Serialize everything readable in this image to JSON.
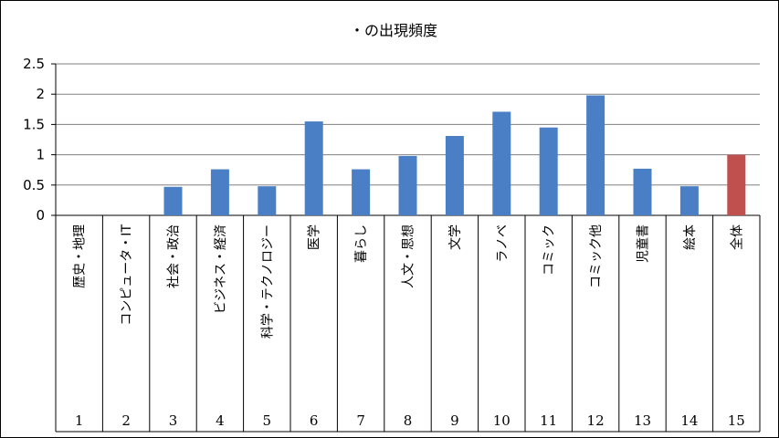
{
  "chart_data": {
    "type": "bar",
    "title": "・の出現頻度",
    "xlabel": "",
    "ylabel": "",
    "ylim": [
      0,
      2.5
    ],
    "yticks": [
      "0",
      "0.5",
      "1",
      "1.5",
      "2",
      "2.5"
    ],
    "grid": true,
    "legend": "none",
    "categories": [
      "歴史・地理",
      "コンピュータ・IT",
      "社会・政治",
      "ビジネス・経済",
      "科学・テクノロジー",
      "医学",
      "暮らし",
      "人文・思想",
      "文学",
      "ラノベ",
      "コミック",
      "コミック他",
      "児童書",
      "絵本",
      "全体"
    ],
    "category_numbers": [
      "1",
      "2",
      "3",
      "4",
      "5",
      "6",
      "7",
      "8",
      "9",
      "10",
      "11",
      "12",
      "13",
      "14",
      "15"
    ],
    "values": [
      0,
      0,
      0.47,
      0.76,
      0.48,
      1.55,
      0.76,
      0.98,
      1.31,
      1.71,
      1.45,
      1.98,
      0.77,
      0.48,
      1.0
    ],
    "colors": {
      "bar": "#4a7fc6",
      "highlight": "#c0504d",
      "grid": "#808080",
      "axis": "#000000"
    },
    "highlight_index": 14
  }
}
